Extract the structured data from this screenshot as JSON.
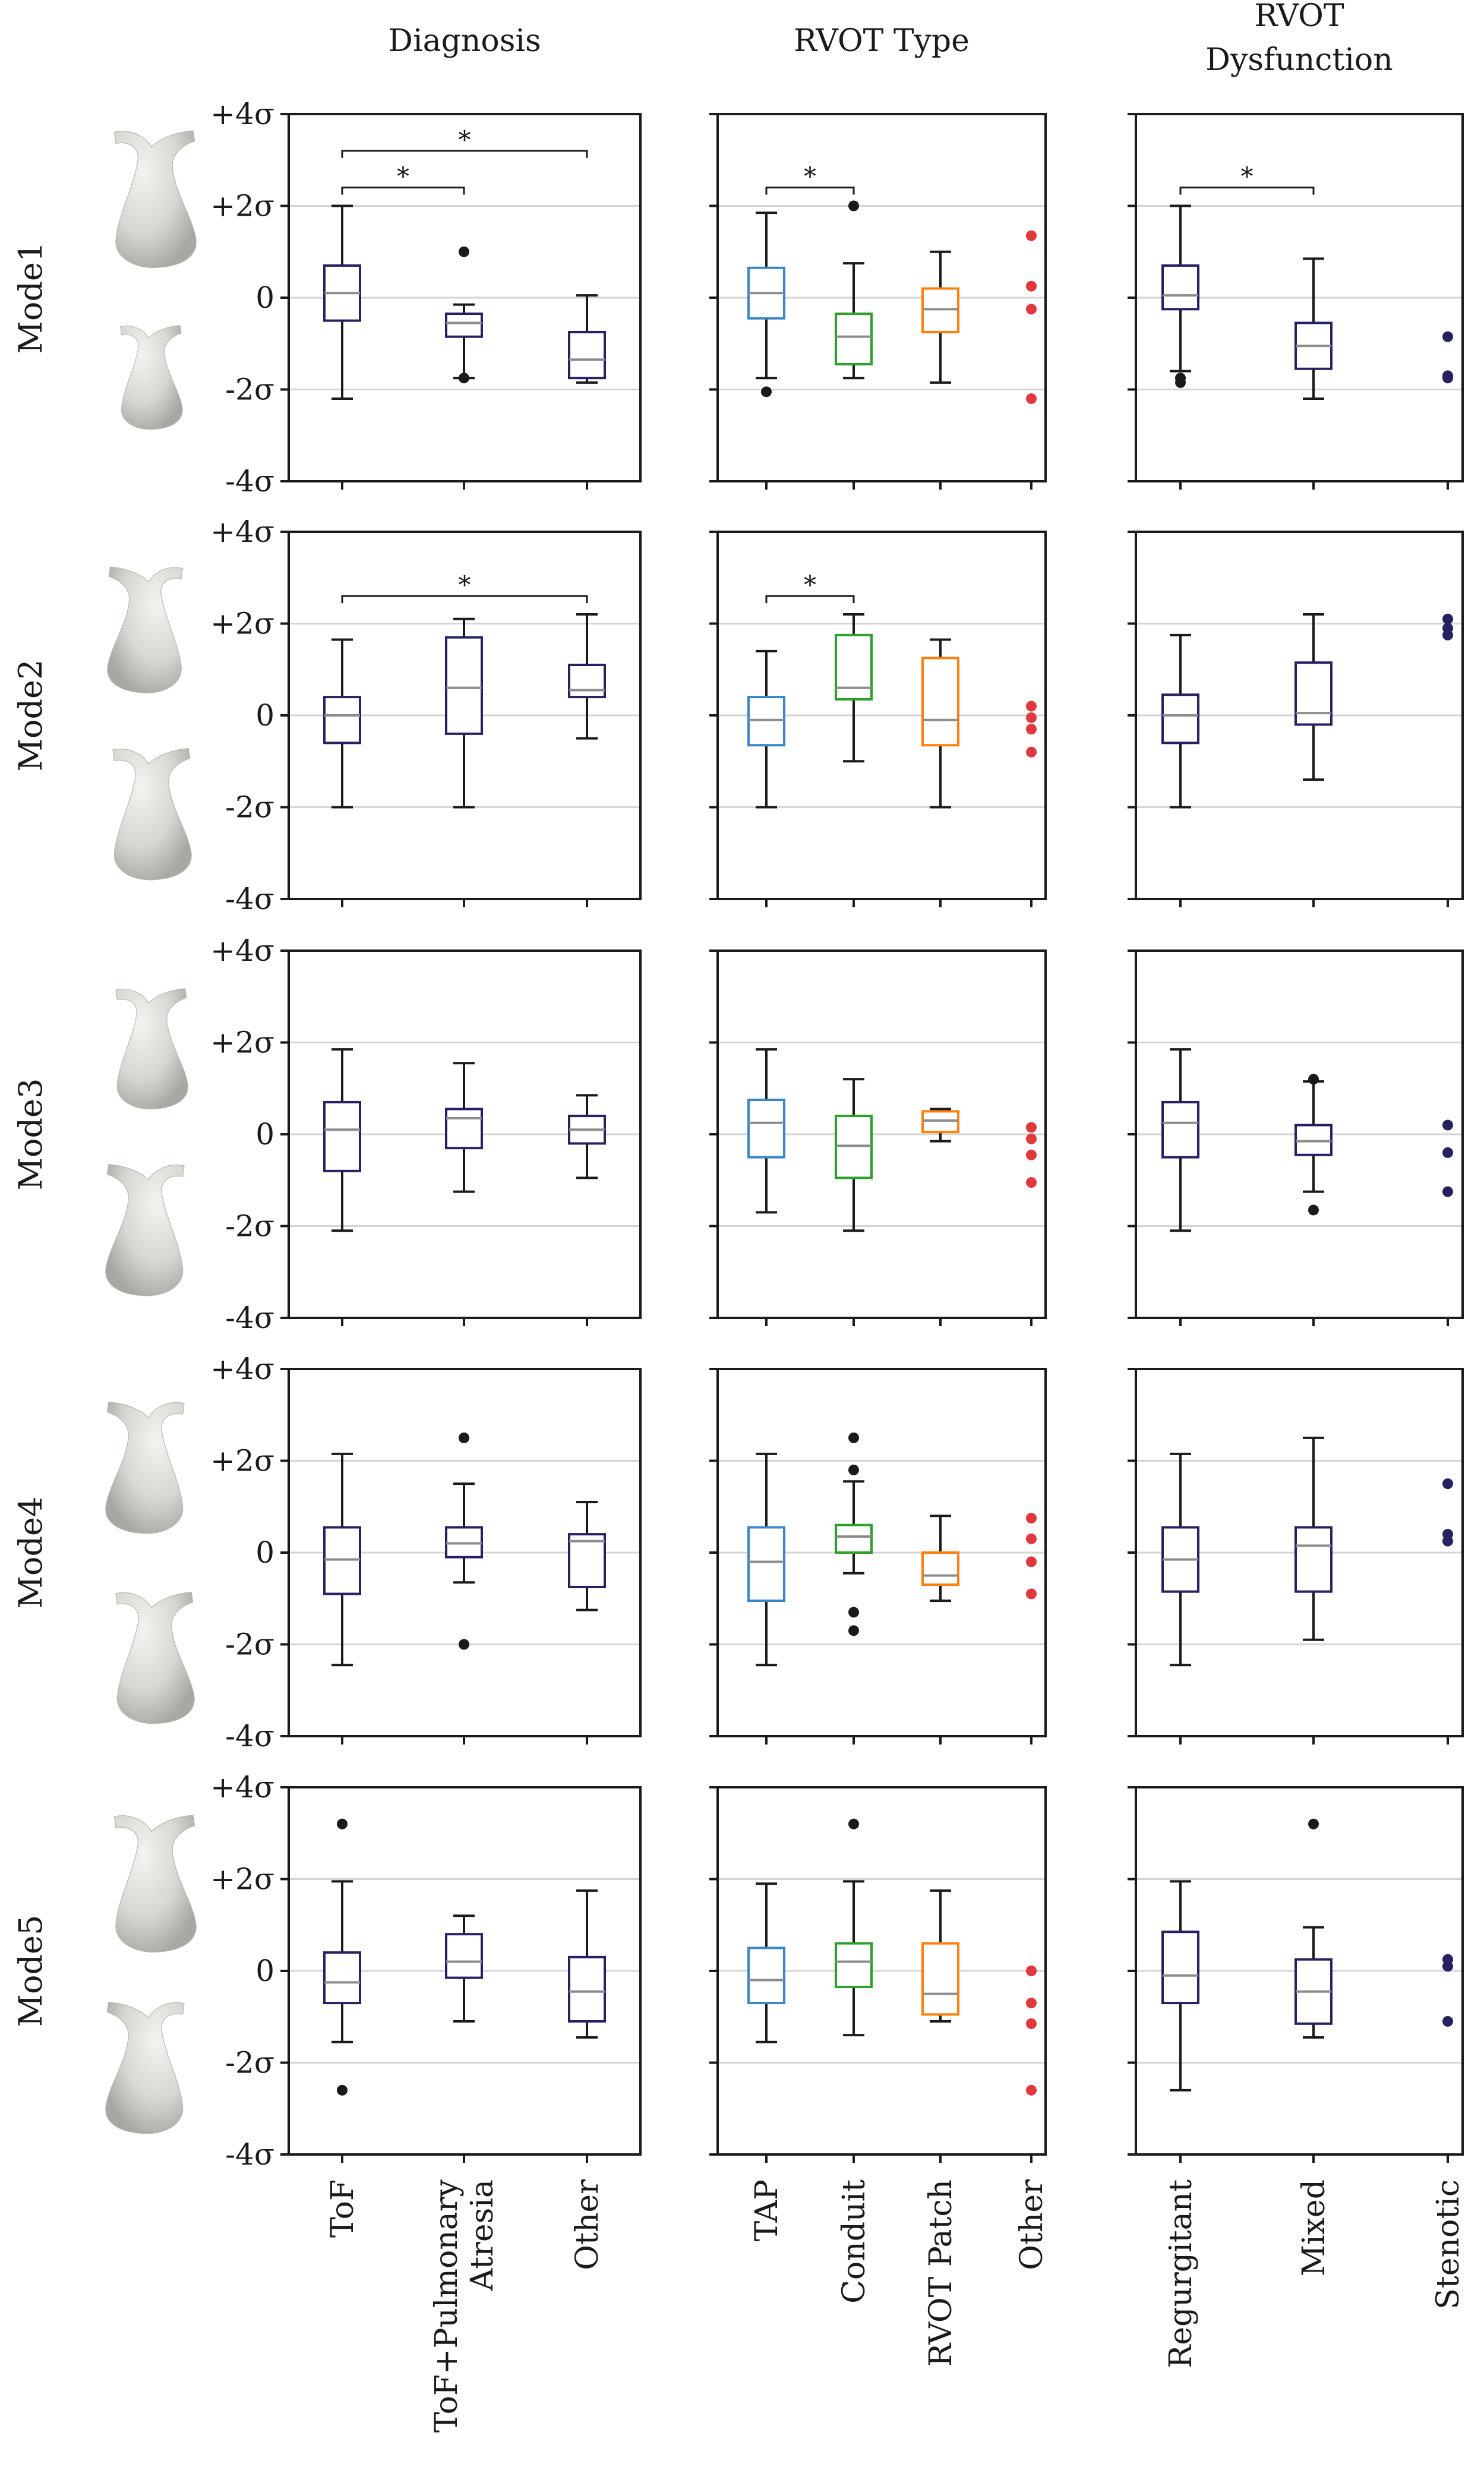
{
  "figure": {
    "column_titles": [
      [
        "Diagnosis"
      ],
      [
        "RVOT Type"
      ],
      [
        "RVOT",
        "Dysfunction"
      ]
    ],
    "row_labels": [
      "Mode1",
      "Mode2",
      "Mode3",
      "Mode4",
      "Mode5"
    ],
    "ytick_labels": [
      "+4σ",
      "+2σ",
      "0",
      "-2σ",
      "-4σ"
    ],
    "column_categories": [
      [
        [
          "ToF"
        ],
        [
          "ToF+Pulmonary",
          "Atresia"
        ],
        [
          "Other"
        ]
      ],
      [
        [
          "TAP"
        ],
        [
          "Conduit"
        ],
        [
          "RVOT Patch"
        ],
        [
          "Other"
        ]
      ],
      [
        [
          "Regurgitant"
        ],
        [
          "Mixed"
        ],
        [
          "Stenotic"
        ]
      ]
    ],
    "significance_marker": "*",
    "shape_icon_color": "#d8d6d0"
  },
  "chart_data": {
    "type": "box",
    "ylim": [
      -4,
      4
    ],
    "yticks": [
      4,
      2,
      0,
      -2,
      -4
    ],
    "grid_y": [
      2,
      0,
      -2
    ],
    "colors": {
      "diagnosis": [
        "#262262",
        "#262262",
        "#262262"
      ],
      "rvot_type": [
        "#3a87c8",
        "#2ca02c",
        "#ff7f0e",
        "#e0383c"
      ],
      "dysfunction": [
        "#262262",
        "#262262",
        "#262262"
      ]
    },
    "panels": [
      {
        "mode": "Mode1",
        "column": "Diagnosis",
        "boxes": [
          {
            "category": "ToF",
            "whislo": -2.2,
            "q1": -0.5,
            "med": 0.1,
            "q3": 0.7,
            "whishi": 2.0,
            "fliers": []
          },
          {
            "category": "ToF+Pulmonary Atresia",
            "whislo": -1.75,
            "q1": -0.85,
            "med": -0.55,
            "q3": -0.35,
            "whishi": -0.15,
            "fliers": [
              1.0,
              -1.75
            ]
          },
          {
            "category": "Other",
            "whislo": -1.85,
            "q1": -1.75,
            "med": -1.35,
            "q3": -0.75,
            "whishi": 0.05,
            "fliers": []
          }
        ],
        "brackets": [
          {
            "from": 0,
            "to": 1,
            "y": 2.4
          },
          {
            "from": 0,
            "to": 2,
            "y": 3.2
          }
        ]
      },
      {
        "mode": "Mode1",
        "column": "RVOT Type",
        "boxes": [
          {
            "category": "TAP",
            "whislo": -1.75,
            "q1": -0.45,
            "med": 0.1,
            "q3": 0.65,
            "whishi": 1.85,
            "fliers": [
              -2.05
            ]
          },
          {
            "category": "Conduit",
            "whislo": -1.75,
            "q1": -1.45,
            "med": -0.85,
            "q3": -0.35,
            "whishi": 0.75,
            "fliers": [
              2.0
            ]
          },
          {
            "category": "RVOT Patch",
            "whislo": -1.85,
            "q1": -0.75,
            "med": -0.25,
            "q3": 0.2,
            "whishi": 1.0,
            "fliers": []
          },
          {
            "category": "Other",
            "points": [
              1.35,
              0.25,
              -0.25,
              -2.2
            ]
          }
        ],
        "brackets": [
          {
            "from": 0,
            "to": 1,
            "y": 2.4
          }
        ]
      },
      {
        "mode": "Mode1",
        "column": "RVOT Dysfunction",
        "boxes": [
          {
            "category": "Regurgitant",
            "whislo": -1.6,
            "q1": -0.25,
            "med": 0.05,
            "q3": 0.7,
            "whishi": 2.0,
            "fliers": [
              -1.75,
              -1.85
            ]
          },
          {
            "category": "Mixed",
            "whislo": -2.2,
            "q1": -1.55,
            "med": -1.05,
            "q3": -0.55,
            "whishi": 0.85,
            "fliers": []
          },
          {
            "category": "Stenotic",
            "points": [
              -0.85,
              -1.7,
              -1.75
            ]
          }
        ],
        "brackets": [
          {
            "from": 0,
            "to": 1,
            "y": 2.4
          }
        ]
      },
      {
        "mode": "Mode2",
        "column": "Diagnosis",
        "boxes": [
          {
            "category": "ToF",
            "whislo": -2.0,
            "q1": -0.6,
            "med": 0.0,
            "q3": 0.4,
            "whishi": 1.65,
            "fliers": []
          },
          {
            "category": "ToF+Pulmonary Atresia",
            "whislo": -2.0,
            "q1": -0.4,
            "med": 0.6,
            "q3": 1.7,
            "whishi": 2.1,
            "fliers": []
          },
          {
            "category": "Other",
            "whislo": -0.5,
            "q1": 0.4,
            "med": 0.55,
            "q3": 1.1,
            "whishi": 2.2,
            "fliers": []
          }
        ],
        "brackets": [
          {
            "from": 0,
            "to": 2,
            "y": 2.6
          }
        ]
      },
      {
        "mode": "Mode2",
        "column": "RVOT Type",
        "boxes": [
          {
            "category": "TAP",
            "whislo": -2.0,
            "q1": -0.65,
            "med": -0.1,
            "q3": 0.4,
            "whishi": 1.4,
            "fliers": []
          },
          {
            "category": "Conduit",
            "whislo": -1.0,
            "q1": 0.35,
            "med": 0.6,
            "q3": 1.75,
            "whishi": 2.2,
            "fliers": []
          },
          {
            "category": "RVOT Patch",
            "whislo": -2.0,
            "q1": -0.65,
            "med": -0.1,
            "q3": 1.25,
            "whishi": 1.65,
            "fliers": []
          },
          {
            "category": "Other",
            "points": [
              0.2,
              -0.05,
              -0.3,
              -0.8
            ]
          }
        ],
        "brackets": [
          {
            "from": 0,
            "to": 1,
            "y": 2.6
          }
        ]
      },
      {
        "mode": "Mode2",
        "column": "RVOT Dysfunction",
        "boxes": [
          {
            "category": "Regurgitant",
            "whislo": -2.0,
            "q1": -0.6,
            "med": 0.0,
            "q3": 0.45,
            "whishi": 1.75,
            "fliers": []
          },
          {
            "category": "Mixed",
            "whislo": -1.4,
            "q1": -0.2,
            "med": 0.05,
            "q3": 1.15,
            "whishi": 2.2,
            "fliers": []
          },
          {
            "category": "Stenotic",
            "points": [
              2.1,
              1.9,
              1.75
            ]
          }
        ],
        "brackets": []
      },
      {
        "mode": "Mode3",
        "column": "Diagnosis",
        "boxes": [
          {
            "category": "ToF",
            "whislo": -2.1,
            "q1": -0.8,
            "med": 0.1,
            "q3": 0.7,
            "whishi": 1.85,
            "fliers": []
          },
          {
            "category": "ToF+Pulmonary Atresia",
            "whislo": -1.25,
            "q1": -0.3,
            "med": 0.35,
            "q3": 0.55,
            "whishi": 1.55,
            "fliers": []
          },
          {
            "category": "Other",
            "whislo": -0.95,
            "q1": -0.2,
            "med": 0.1,
            "q3": 0.4,
            "whishi": 0.85,
            "fliers": []
          }
        ],
        "brackets": []
      },
      {
        "mode": "Mode3",
        "column": "RVOT Type",
        "boxes": [
          {
            "category": "TAP",
            "whislo": -1.7,
            "q1": -0.5,
            "med": 0.25,
            "q3": 0.75,
            "whishi": 1.85,
            "fliers": []
          },
          {
            "category": "Conduit",
            "whislo": -2.1,
            "q1": -0.95,
            "med": -0.25,
            "q3": 0.4,
            "whishi": 1.2,
            "fliers": []
          },
          {
            "category": "RVOT Patch",
            "whislo": -0.15,
            "q1": 0.05,
            "med": 0.3,
            "q3": 0.5,
            "whishi": 0.55,
            "fliers": []
          },
          {
            "category": "Other",
            "points": [
              0.15,
              -0.1,
              -0.45,
              -1.05
            ]
          }
        ],
        "brackets": []
      },
      {
        "mode": "Mode3",
        "column": "RVOT Dysfunction",
        "boxes": [
          {
            "category": "Regurgitant",
            "whislo": -2.1,
            "q1": -0.5,
            "med": 0.25,
            "q3": 0.7,
            "whishi": 1.85,
            "fliers": []
          },
          {
            "category": "Mixed",
            "whislo": -1.25,
            "q1": -0.45,
            "med": -0.15,
            "q3": 0.2,
            "whishi": 1.15,
            "fliers": [
              1.2,
              -1.65
            ]
          },
          {
            "category": "Stenotic",
            "points": [
              0.2,
              -0.4,
              -1.25
            ]
          }
        ],
        "brackets": []
      },
      {
        "mode": "Mode4",
        "column": "Diagnosis",
        "boxes": [
          {
            "category": "ToF",
            "whislo": -2.45,
            "q1": -0.9,
            "med": -0.15,
            "q3": 0.55,
            "whishi": 2.15,
            "fliers": []
          },
          {
            "category": "ToF+Pulmonary Atresia",
            "whislo": -0.65,
            "q1": -0.1,
            "med": 0.2,
            "q3": 0.55,
            "whishi": 1.5,
            "fliers": [
              2.5,
              -2.0
            ]
          },
          {
            "category": "Other",
            "whislo": -1.25,
            "q1": -0.75,
            "med": 0.25,
            "q3": 0.4,
            "whishi": 1.1,
            "fliers": []
          }
        ],
        "brackets": []
      },
      {
        "mode": "Mode4",
        "column": "RVOT Type",
        "boxes": [
          {
            "category": "TAP",
            "whislo": -2.45,
            "q1": -1.05,
            "med": -0.2,
            "q3": 0.55,
            "whishi": 2.15,
            "fliers": []
          },
          {
            "category": "Conduit",
            "whislo": -0.45,
            "q1": 0.0,
            "med": 0.35,
            "q3": 0.6,
            "whishi": 1.55,
            "fliers": [
              2.5,
              1.8,
              -1.3,
              -1.7
            ]
          },
          {
            "category": "RVOT Patch",
            "whislo": -1.05,
            "q1": -0.7,
            "med": -0.5,
            "q3": 0.0,
            "whishi": 0.8,
            "fliers": []
          },
          {
            "category": "Other",
            "points": [
              0.75,
              0.3,
              -0.2,
              -0.9
            ]
          }
        ],
        "brackets": []
      },
      {
        "mode": "Mode4",
        "column": "RVOT Dysfunction",
        "boxes": [
          {
            "category": "Regurgitant",
            "whislo": -2.45,
            "q1": -0.85,
            "med": -0.15,
            "q3": 0.55,
            "whishi": 2.15,
            "fliers": []
          },
          {
            "category": "Mixed",
            "whislo": -1.9,
            "q1": -0.85,
            "med": 0.15,
            "q3": 0.55,
            "whishi": 2.5,
            "fliers": []
          },
          {
            "category": "Stenotic",
            "points": [
              1.5,
              0.4,
              0.25
            ]
          }
        ],
        "brackets": []
      },
      {
        "mode": "Mode5",
        "column": "Diagnosis",
        "boxes": [
          {
            "category": "ToF",
            "whislo": -1.55,
            "q1": -0.7,
            "med": -0.25,
            "q3": 0.4,
            "whishi": 1.95,
            "fliers": [
              3.2,
              -2.6
            ]
          },
          {
            "category": "ToF+Pulmonary Atresia",
            "whislo": -1.1,
            "q1": -0.15,
            "med": 0.2,
            "q3": 0.8,
            "whishi": 1.2,
            "fliers": []
          },
          {
            "category": "Other",
            "whislo": -1.45,
            "q1": -1.1,
            "med": -0.45,
            "q3": 0.3,
            "whishi": 1.75,
            "fliers": []
          }
        ],
        "brackets": []
      },
      {
        "mode": "Mode5",
        "column": "RVOT Type",
        "boxes": [
          {
            "category": "TAP",
            "whislo": -1.55,
            "q1": -0.7,
            "med": -0.2,
            "q3": 0.5,
            "whishi": 1.9,
            "fliers": []
          },
          {
            "category": "Conduit",
            "whislo": -1.4,
            "q1": -0.35,
            "med": 0.2,
            "q3": 0.6,
            "whishi": 1.95,
            "fliers": [
              3.2
            ]
          },
          {
            "category": "RVOT Patch",
            "whislo": -1.1,
            "q1": -0.95,
            "med": -0.5,
            "q3": 0.6,
            "whishi": 1.75,
            "fliers": []
          },
          {
            "category": "Other",
            "points": [
              0.0,
              -0.7,
              -1.15,
              -2.6
            ]
          }
        ],
        "brackets": []
      },
      {
        "mode": "Mode5",
        "column": "RVOT Dysfunction",
        "boxes": [
          {
            "category": "Regurgitant",
            "whislo": -2.6,
            "q1": -0.7,
            "med": -0.1,
            "q3": 0.85,
            "whishi": 1.95,
            "fliers": []
          },
          {
            "category": "Mixed",
            "whislo": -1.45,
            "q1": -1.15,
            "med": -0.45,
            "q3": 0.25,
            "whishi": 0.95,
            "fliers": [
              3.2
            ]
          },
          {
            "category": "Stenotic",
            "points": [
              0.25,
              0.1,
              -1.1
            ]
          }
        ],
        "brackets": []
      }
    ]
  }
}
